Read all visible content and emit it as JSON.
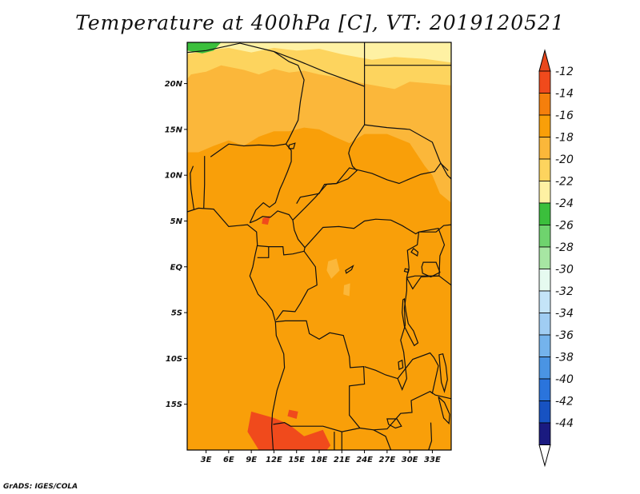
{
  "title": "Temperature at 400hPa [C], VT: 2019120521",
  "credit": "GrADS: IGES/COLA",
  "map": {
    "lon_min": 0.5,
    "lon_max": 35.5,
    "lat_min": -20.0,
    "lat_max": 24.5,
    "lat_ticks": [
      {
        "value": 20,
        "label": "20N"
      },
      {
        "value": 15,
        "label": "15N"
      },
      {
        "value": 10,
        "label": "10N"
      },
      {
        "value": 5,
        "label": "5N"
      },
      {
        "value": 0,
        "label": "EQ"
      },
      {
        "value": -5,
        "label": "5S"
      },
      {
        "value": -10,
        "label": "10S"
      },
      {
        "value": -15,
        "label": "15S"
      }
    ],
    "lon_ticks": [
      {
        "value": 3,
        "label": "3E"
      },
      {
        "value": 6,
        "label": "6E"
      },
      {
        "value": 9,
        "label": "9E"
      },
      {
        "value": 12,
        "label": "12E"
      },
      {
        "value": 15,
        "label": "15E"
      },
      {
        "value": 18,
        "label": "18E"
      },
      {
        "value": 21,
        "label": "21E"
      },
      {
        "value": 24,
        "label": "24E"
      },
      {
        "value": 27,
        "label": "27E"
      },
      {
        "value": 30,
        "label": "30E"
      },
      {
        "value": 33,
        "label": "33E"
      }
    ]
  },
  "colorbar": {
    "labels": [
      "-12",
      "-14",
      "-16",
      "-18",
      "-20",
      "-22",
      "-24",
      "-26",
      "-28",
      "-30",
      "-32",
      "-34",
      "-36",
      "-38",
      "-40",
      "-42",
      "-44"
    ],
    "colors": [
      "#f04a1c",
      "#f57f0c",
      "#f99f09",
      "#fbb73a",
      "#fdd45e",
      "#fef1a3",
      "#3bbf3c",
      "#6fd36e",
      "#a7e6a3",
      "#e6faf0",
      "#c4e4f8",
      "#a0cdf3",
      "#74b3ec",
      "#4a94e3",
      "#2a74dc",
      "#1752c2",
      "#1a1a80"
    ],
    "top_color": "#e9471c",
    "bottom_color": "#ffffff"
  },
  "field_colors": {
    "t_12": "#f04a1c",
    "t_14": "#f99f09",
    "t_16": "#fbb73a",
    "t_18": "#fdd45e",
    "t_20": "#fef1a3",
    "t_24": "#3bbf3c"
  },
  "coastline_color": "#111111"
}
